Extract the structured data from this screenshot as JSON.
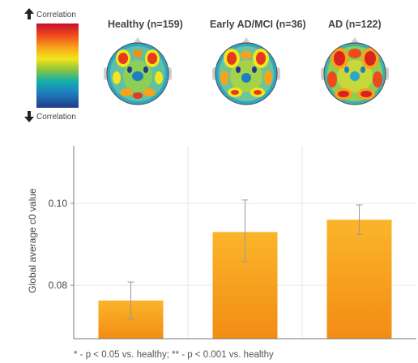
{
  "legend": {
    "top_label": "Correlation",
    "bottom_label": "Correlation",
    "up_icon": "arrow-up-icon",
    "down_icon": "arrow-down-icon"
  },
  "groups": [
    {
      "title": "Healthy (n=159)"
    },
    {
      "title": "Early AD/MCI (n=36)"
    },
    {
      "title": "AD (n=122)"
    }
  ],
  "chart_data": {
    "type": "bar",
    "categories": [
      "Healthy",
      "Early AD/MCI",
      "AD"
    ],
    "values": [
      0.0763,
      0.093,
      0.096
    ],
    "error_low": [
      0.0718,
      0.0858,
      0.0924
    ],
    "error_high": [
      0.0808,
      0.1008,
      0.0996
    ],
    "ylabel": "Global average c0 value",
    "ylim": [
      0.067,
      0.114
    ],
    "yticks": [
      0.08,
      0.1
    ],
    "ytick_labels": [
      "0.08",
      "0.10"
    ],
    "grid": true,
    "bar_color": "#f7a51c",
    "bar_color_top": "#fbb52a",
    "bar_color_bottom": "#f28c14"
  },
  "footnote": "* - p < 0.05 vs. healthy; ** - p < 0.001 vs. healthy"
}
